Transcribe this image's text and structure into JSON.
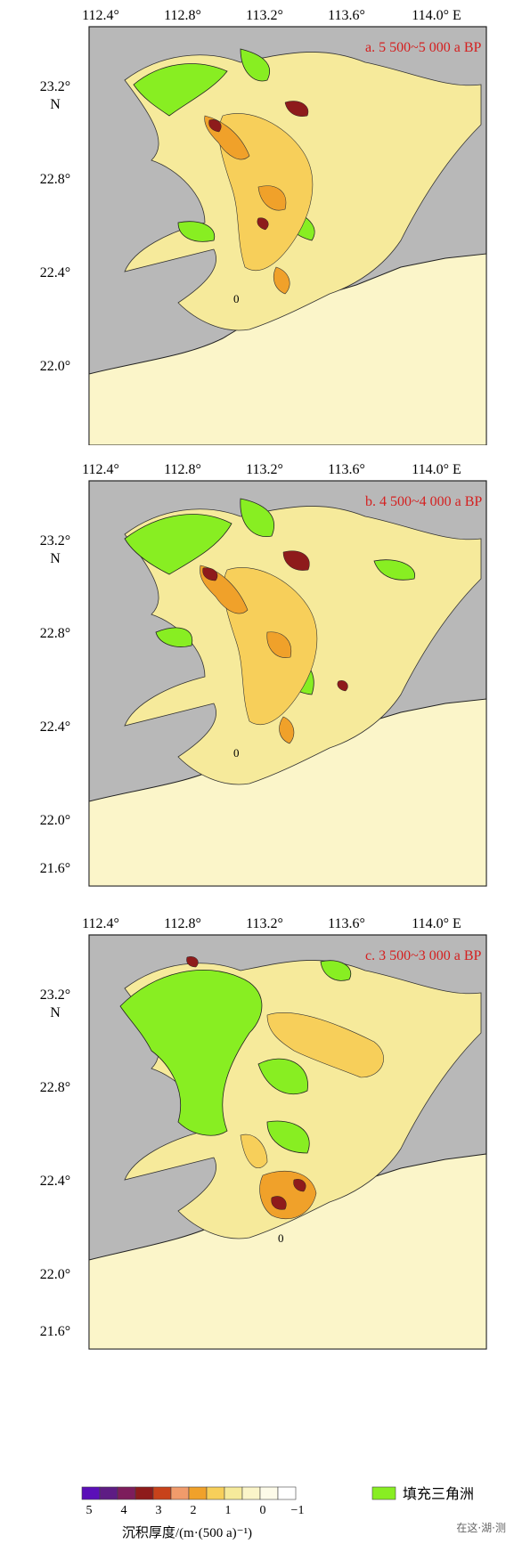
{
  "axes": {
    "x_ticks": [
      "112.4°",
      "112.8°",
      "113.2°",
      "113.6°",
      "114.0° E"
    ],
    "y_ticks": [
      "23.2°",
      "22.8°",
      "22.4°",
      "22.0°",
      "21.6°"
    ],
    "y_unit": "N"
  },
  "panels": [
    {
      "label": "a. 5 500~5 000 a BP",
      "contour_label": "0"
    },
    {
      "label": "b. 4 500~4 000 a BP",
      "contour_label": "0"
    },
    {
      "label": "c. 3 500~3 000 a BP",
      "contour_label": "0"
    }
  ],
  "legend": {
    "scale_ticks": [
      "5",
      "4",
      "3",
      "2",
      "1",
      "0",
      "−1"
    ],
    "title": "沉积厚度/(m·(500 a)⁻¹)",
    "delta_label": "填充三角洲",
    "scale_colors": [
      "#5b0fb8",
      "#5e1c84",
      "#7d1d5c",
      "#8e1b1b",
      "#c8421a",
      "#f19b6b",
      "#f0a12a",
      "#f7cf5a",
      "#f6ea9b",
      "#fbf5c9",
      "#fdfbe9",
      "#ffffff"
    ],
    "delta_color": "#88ee22"
  },
  "colors": {
    "land": "#b8b8b8",
    "sea": "#fbf5c9",
    "light_deposit": "#f6ea9b",
    "mid_deposit": "#f7cf5a",
    "orange_deposit": "#f0a12a",
    "dark_deposit": "#8e1b1b",
    "delta": "#88ee22",
    "label_red": "#d42020"
  },
  "watermark": "在这·湖·测"
}
